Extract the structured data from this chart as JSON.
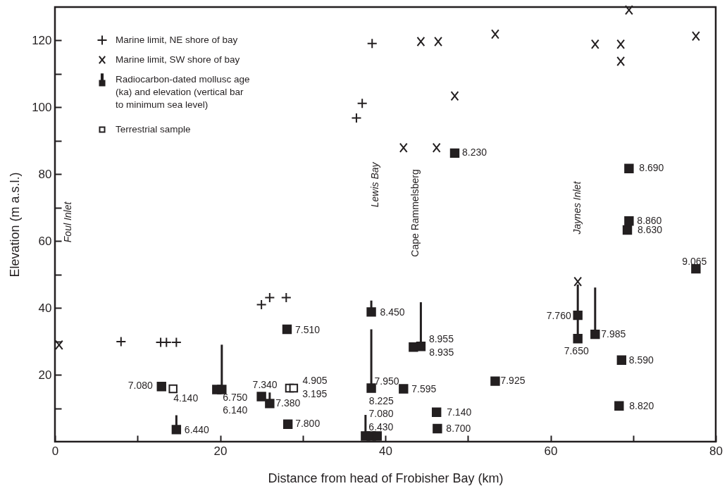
{
  "chart_data": {
    "type": "scatter",
    "xlabel": "Distance from head of Frobisher Bay (km)",
    "ylabel": "Elevation (m a.s.l.)",
    "xlim": [
      0,
      80
    ],
    "ylim": [
      0,
      130
    ],
    "xticks": [
      0,
      {
        "value": 10,
        "label": null
      },
      20,
      {
        "value": 30,
        "label": null
      },
      40,
      {
        "value": 50,
        "label": null
      },
      60,
      {
        "value": 70,
        "label": null
      },
      80
    ],
    "yticks": [
      {
        "value": 10,
        "label": null
      },
      20,
      {
        "value": 30,
        "label": null
      },
      40,
      {
        "value": 50,
        "label": null
      },
      60,
      {
        "value": 70,
        "label": null
      },
      80,
      {
        "value": 90,
        "label": null
      },
      100,
      {
        "value": 110,
        "label": null
      },
      120
    ],
    "grid": false,
    "legend": "top left",
    "series": [
      {
        "name": "Marine limit, NE shore of bay",
        "color": "#231f20",
        "marker": "cross",
        "x": [
          8.0,
          12.8,
          13.5,
          14.7,
          25.0,
          26.0,
          28.0,
          36.5,
          37.2,
          38.4
        ],
        "values": [
          29.9,
          29.7,
          29.7,
          29.7,
          41.0,
          43.1,
          43.1,
          96.8,
          101.2,
          119.1
        ]
      },
      {
        "name": "Marine limit, SW shore of bay",
        "color": "#231f20",
        "marker": "x",
        "x": [
          0.5,
          42.2,
          44.3,
          46.2,
          46.4,
          48.4,
          53.3,
          63.3,
          65.4,
          68.5,
          68.5,
          69.5,
          77.6
        ],
        "values": [
          28.9,
          87.9,
          119.7,
          87.9,
          119.7,
          103.4,
          121.9,
          47.9,
          118.9,
          118.9,
          113.8,
          129.1,
          121.3
        ]
      },
      {
        "name": "Radiocarbon-dated mollusc age (ka) and elevation (vertical bar to minimum sea level)",
        "color": "#231f20",
        "marker": "square",
        "x": [
          12.9,
          14.7,
          19.6,
          20.2,
          25.0,
          26.0,
          28.1,
          28.2,
          37.6,
          38.3,
          39.0,
          38.3,
          38.3,
          42.2,
          43.4,
          44.3,
          46.2,
          46.3,
          48.4,
          53.3,
          63.3,
          63.3,
          65.4,
          68.3,
          68.6,
          69.3,
          69.5,
          69.5,
          77.6
        ],
        "values": [
          16.5,
          3.6,
          15.6,
          15.6,
          13.5,
          11.4,
          33.6,
          5.2,
          1.7,
          1.7,
          1.7,
          16.0,
          38.8,
          15.8,
          28.3,
          28.5,
          8.8,
          3.9,
          86.3,
          18.1,
          37.8,
          30.8,
          32.1,
          10.7,
          24.4,
          63.3,
          66.0,
          81.7,
          51.7
        ],
        "errors": [
          null,
          [
            3.6,
            7.9
          ],
          null,
          [
            15.6,
            29.0
          ],
          null,
          [
            11.4,
            14.7
          ],
          null,
          null,
          [
            1.7,
            8.0
          ],
          null,
          null,
          [
            16.0,
            33.6
          ],
          [
            38.8,
            42.2
          ],
          null,
          null,
          [
            28.5,
            41.7
          ],
          null,
          null,
          null,
          null,
          null,
          [
            30.8,
            47.0
          ],
          [
            32.1,
            46.1
          ],
          null,
          null,
          null,
          null,
          null,
          null
        ]
      },
      {
        "name": "Terrestrial sample",
        "color": "#ffffff",
        "marker": "square",
        "x": [
          14.3,
          28.4,
          28.9
        ],
        "values": [
          15.8,
          16.0,
          16.0
        ]
      }
    ],
    "annotations": [
      "Foul Inlet",
      "Lewis Bay",
      "Cape Rammelsberg",
      "Jaynes Inlet",
      {
        "text": "7.080",
        "x": 12.9,
        "y": 16.5
      },
      {
        "text": "6.440",
        "x": 14.7,
        "y": 3.6
      },
      {
        "text": "6.750",
        "x": 19.6,
        "y": 15.6
      },
      {
        "text": "6.140",
        "x": 20.2,
        "y": 15.6
      },
      {
        "text": "7.340",
        "x": 25.0,
        "y": 13.5
      },
      {
        "text": "7.380",
        "x": 26.0,
        "y": 11.4
      },
      {
        "text": "7.510",
        "x": 28.1,
        "y": 33.6
      },
      {
        "text": "7.800",
        "x": 28.2,
        "y": 5.2
      },
      {
        "text": "6.430",
        "x": 37.6,
        "y": 1.7
      },
      {
        "text": "7.080",
        "x": 38.3,
        "y": 1.7
      },
      "8.225",
      {
        "text": "7.950",
        "x": 38.3,
        "y": 16.0
      },
      {
        "text": "8.450",
        "x": 38.3,
        "y": 38.8
      },
      {
        "text": "7.595",
        "x": 42.2,
        "y": 15.8
      },
      {
        "text": "8.935",
        "x": 43.4,
        "y": 28.3
      },
      {
        "text": "8.955",
        "x": 44.3,
        "y": 28.5
      },
      {
        "text": "7.140",
        "x": 46.2,
        "y": 8.8
      },
      {
        "text": "8.700",
        "x": 46.3,
        "y": 3.9
      },
      {
        "text": "8.230",
        "x": 48.4,
        "y": 86.3
      },
      {
        "text": "7.925",
        "x": 53.3,
        "y": 18.1
      },
      {
        "text": "7.760",
        "x": 63.3,
        "y": 37.8
      },
      {
        "text": "7.650",
        "x": 63.3,
        "y": 30.8
      },
      {
        "text": "7.985",
        "x": 65.4,
        "y": 32.1
      },
      {
        "text": "8.820",
        "x": 68.3,
        "y": 10.7
      },
      {
        "text": "8.590",
        "x": 68.6,
        "y": 24.4
      },
      {
        "text": "8.630",
        "x": 69.3,
        "y": 63.3
      },
      {
        "text": "8.860",
        "x": 69.5,
        "y": 66.0
      },
      {
        "text": "8.690",
        "x": 69.5,
        "y": 81.7
      },
      {
        "text": "9.065",
        "x": 77.6,
        "y": 51.7
      },
      {
        "text": "4.140",
        "x": 14.3,
        "y": 15.8
      },
      {
        "text": "4.905",
        "x": 28.4,
        "y": 16.0
      },
      {
        "text": "3.195",
        "x": 28.9,
        "y": 16.0
      }
    ]
  }
}
